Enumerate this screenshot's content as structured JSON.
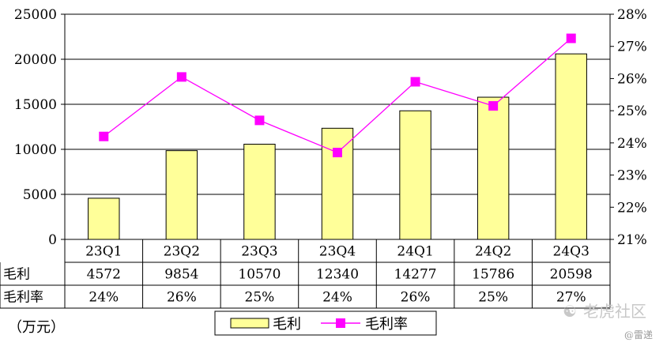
{
  "chart_data": {
    "type": "bar",
    "categories": [
      "23Q1",
      "23Q2",
      "23Q3",
      "23Q4",
      "24Q1",
      "24Q2",
      "24Q3"
    ],
    "series": [
      {
        "name": "毛利",
        "type": "bar",
        "axis": "left",
        "values": [
          4572,
          9854,
          10570,
          12340,
          14277,
          15786,
          20598
        ]
      },
      {
        "name": "毛利率",
        "type": "line",
        "axis": "right",
        "values": [
          24.2,
          26.05,
          24.7,
          23.7,
          25.9,
          25.15,
          27.25
        ]
      }
    ],
    "y_left": {
      "min": 0,
      "max": 25000,
      "step": 5000,
      "ticks": [
        "0",
        "5000",
        "10000",
        "15000",
        "20000",
        "25000"
      ]
    },
    "y_right": {
      "min": 21,
      "max": 28,
      "step": 1,
      "ticks": [
        "21%",
        "22%",
        "23%",
        "24%",
        "25%",
        "26%",
        "27%",
        "28%"
      ]
    },
    "table": {
      "rows": [
        {
          "label": "毛利",
          "cells": [
            "4572",
            "9854",
            "10570",
            "12340",
            "14277",
            "15786",
            "20598"
          ]
        },
        {
          "label": "毛利率",
          "cells": [
            "24%",
            "26%",
            "25%",
            "24%",
            "26%",
            "25%",
            "27%"
          ]
        }
      ]
    },
    "unit_label": "（万元）",
    "legend": [
      {
        "label": "毛利",
        "kind": "bar"
      },
      {
        "label": "毛利率",
        "kind": "line"
      }
    ],
    "legend_position": "bottom",
    "grid": true,
    "colors": {
      "bar_fill": "#ffff99",
      "bar_stroke": "#000000",
      "line": "#ff00ff",
      "marker": "#ff00ff",
      "grid": "#000000"
    }
  },
  "watermark": {
    "text": "老虎社区",
    "sub": "@雷递"
  }
}
